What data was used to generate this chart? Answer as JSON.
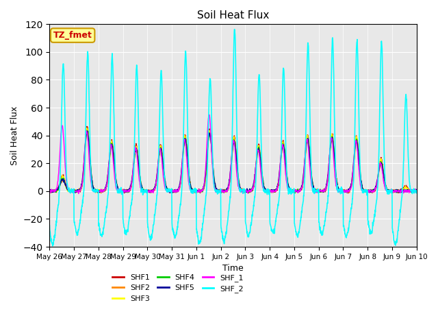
{
  "title": "Soil Heat Flux",
  "xlabel": "Time",
  "ylabel": "Soil Heat Flux",
  "ylim": [
    -40,
    120
  ],
  "yticks": [
    -40,
    -20,
    0,
    20,
    40,
    60,
    80,
    100,
    120
  ],
  "legend_label": "TZ_fmet",
  "legend_text_color": "#cc0000",
  "legend_bg_color": "#ffff99",
  "legend_border_color": "#cc9900",
  "bg_color": "#e8e8e8",
  "series": [
    {
      "name": "SHF1",
      "color": "#cc0000"
    },
    {
      "name": "SHF2",
      "color": "#ff8800"
    },
    {
      "name": "SHF3",
      "color": "#ffff00"
    },
    {
      "name": "SHF4",
      "color": "#00cc00"
    },
    {
      "name": "SHF5",
      "color": "#000099"
    },
    {
      "name": "SHF_1",
      "color": "#ff00ff"
    },
    {
      "name": "SHF_2",
      "color": "#00ffff"
    }
  ],
  "cyan_peaks": [
    93,
    100,
    98,
    91,
    87,
    101,
    82,
    117,
    84,
    89,
    107,
    110,
    109,
    108,
    70
  ],
  "cyan_troughs": [
    -38,
    -30,
    -32,
    -30,
    -34,
    -33,
    -37,
    -36,
    -32,
    -30,
    -32,
    -31,
    -33,
    -30,
    -38
  ],
  "main_peaks": [
    8,
    43,
    33,
    30,
    30,
    37,
    41,
    36,
    30,
    33,
    37,
    38,
    36,
    20,
    0
  ],
  "magenta_peaks": [
    47,
    43,
    33,
    31,
    30,
    37,
    55,
    36,
    30,
    33,
    37,
    38,
    36,
    20,
    0
  ],
  "n_days": 15
}
